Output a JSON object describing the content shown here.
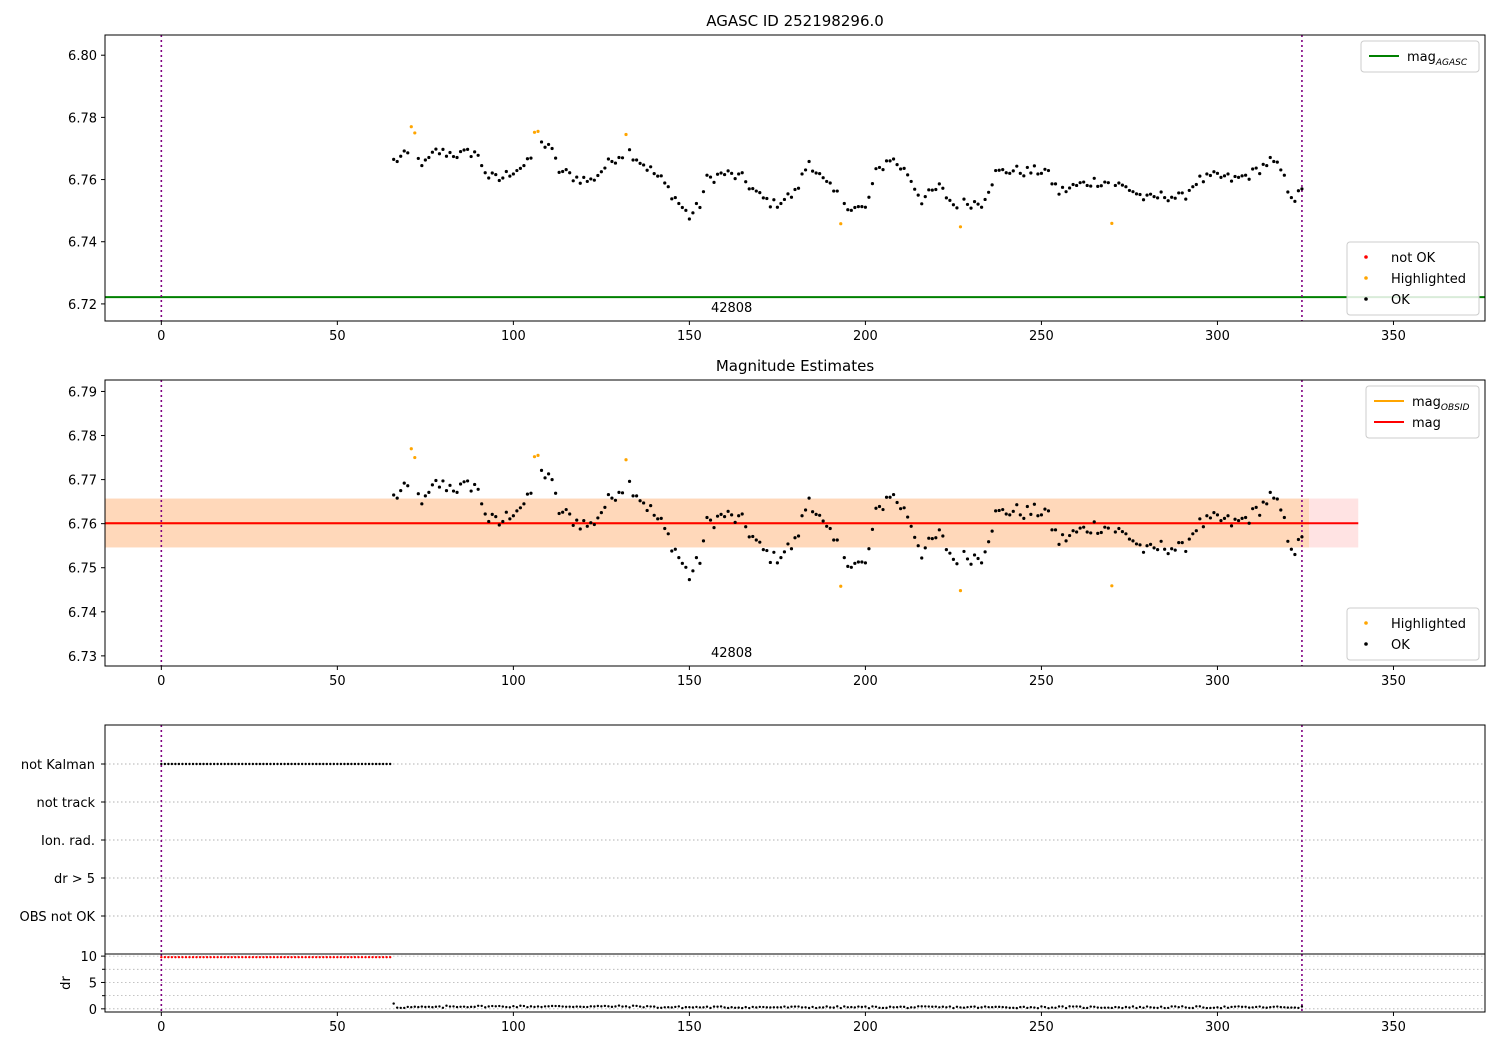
{
  "chart_data": [
    {
      "type": "scatter",
      "title": "AGASC ID 252198296.0",
      "xlim": [
        -16,
        376
      ],
      "ylim": [
        6.7145,
        6.8065
      ],
      "xticks": [
        0,
        50,
        100,
        150,
        200,
        250,
        300,
        350
      ],
      "yticks": [
        6.72,
        6.74,
        6.76,
        6.78,
        6.8
      ],
      "ytick_decimals": 2,
      "vlines": [
        0,
        324
      ],
      "hline": {
        "name": "mag_AGASC",
        "value": 6.7222,
        "color": "#008000"
      },
      "annotation": {
        "text": "42808",
        "x": 162
      },
      "series": [
        {
          "name": "not OK",
          "color": "#ff0000",
          "x": [],
          "y": []
        },
        {
          "name": "Highlighted",
          "color": "#ffa500",
          "x": [
            71,
            72,
            106,
            107,
            132,
            193,
            227,
            270
          ],
          "y": [
            6.777,
            6.775,
            6.7752,
            6.7755,
            6.7745,
            6.7458,
            6.7448,
            6.7459
          ]
        },
        {
          "name": "OK",
          "color": "#000000",
          "x": [],
          "y": []
        }
      ],
      "legends": [
        {
          "position": "top-right",
          "entries": [
            {
              "label": "mag",
              "sub": "AGASC",
              "kind": "line",
              "color": "#008000"
            }
          ]
        },
        {
          "position": "bottom-right",
          "entries": [
            {
              "label": "not OK",
              "kind": "dot",
              "color": "#ff0000"
            },
            {
              "label": "Highlighted",
              "kind": "dot",
              "color": "#ffa500"
            },
            {
              "label": "OK",
              "kind": "dot",
              "color": "#000000"
            }
          ]
        }
      ]
    },
    {
      "type": "scatter",
      "title": "Magnitude Estimates",
      "xlim": [
        -16,
        376
      ],
      "ylim": [
        6.7277,
        6.7926
      ],
      "xticks": [
        0,
        50,
        100,
        150,
        200,
        250,
        300,
        350
      ],
      "yticks": [
        6.73,
        6.74,
        6.75,
        6.76,
        6.77,
        6.78,
        6.79
      ],
      "ytick_decimals": 2,
      "vlines": [
        0,
        324
      ],
      "mag_line": {
        "name": "mag",
        "value": 6.7601,
        "color": "#ff0000",
        "band": [
          6.7546,
          6.7657
        ],
        "x_range": [
          -16,
          340
        ]
      },
      "obsid_line": {
        "name": "mag_OBSID",
        "value": 6.7601,
        "color": "#ffa500",
        "band": [
          6.7546,
          6.7657
        ],
        "x_range": [
          -16,
          326
        ]
      },
      "annotation": {
        "text": "42808",
        "x": 162
      },
      "series": [
        {
          "name": "Highlighted",
          "color": "#ffa500",
          "x": [
            71,
            72,
            106,
            107,
            132,
            193,
            227,
            270
          ],
          "y": [
            6.777,
            6.775,
            6.7752,
            6.7755,
            6.7745,
            6.7458,
            6.7448,
            6.7459
          ]
        },
        {
          "name": "OK",
          "color": "#000000",
          "x": [],
          "y": []
        }
      ],
      "legends": [
        {
          "position": "top-right",
          "entries": [
            {
              "label": "mag",
              "sub": "OBSID",
              "kind": "line",
              "color": "#ffa500"
            },
            {
              "label": "mag",
              "kind": "line",
              "color": "#ff0000"
            }
          ]
        },
        {
          "position": "bottom-right",
          "entries": [
            {
              "label": "Highlighted",
              "kind": "dot",
              "color": "#ffa500"
            },
            {
              "label": "OK",
              "kind": "dot",
              "color": "#000000"
            }
          ]
        }
      ]
    },
    {
      "type": "scatter",
      "title": "",
      "xlim": [
        -16,
        376
      ],
      "categories": [
        "not Kalman",
        "not track",
        "Ion. rad.",
        "dr > 5",
        "OBS not OK"
      ],
      "flags": {
        "not Kalman": [
          0,
          65
        ]
      },
      "vlines": [
        0,
        324
      ]
    },
    {
      "type": "scatter",
      "title": "",
      "ylabel": "dr",
      "xlim": [
        -16,
        376
      ],
      "ylim": [
        -0.6,
        10.4
      ],
      "xticks": [
        0,
        50,
        100,
        150,
        200,
        250,
        300,
        350
      ],
      "yticks": [
        0,
        5,
        10
      ],
      "vlines": [
        0,
        324
      ],
      "series": [
        {
          "name": "not OK",
          "color": "#ff0000",
          "x_range": [
            0,
            65
          ],
          "value": 9.8
        },
        {
          "name": "OK",
          "color": "#000000",
          "x_range": [
            66,
            324
          ],
          "value": 0.3
        }
      ]
    }
  ]
}
